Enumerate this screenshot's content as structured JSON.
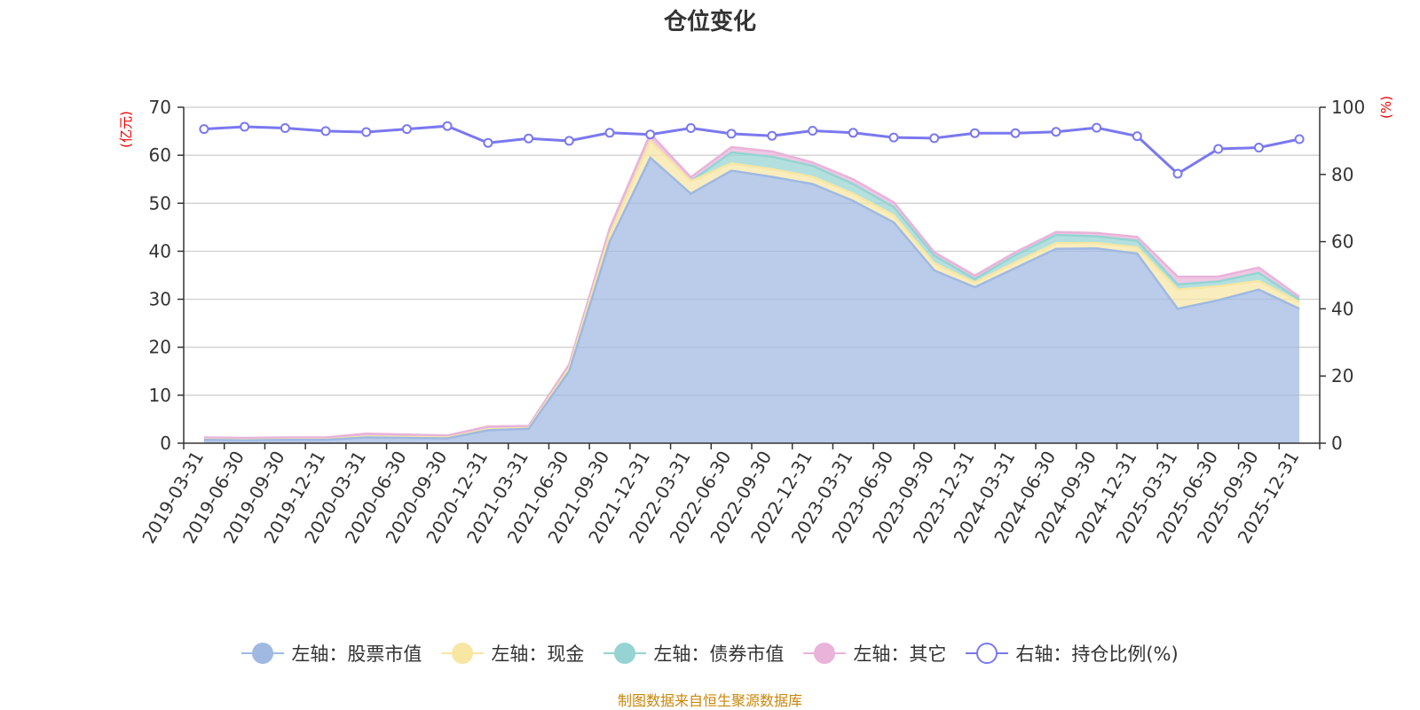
{
  "title": "仓位变化",
  "source": "制图数据来自恒生聚源数据库",
  "colors": {
    "stock": "#9fb9e2",
    "cash": "#f8e6a3",
    "bond": "#95d4d2",
    "other": "#e9b3da",
    "ratio": "#7a78ef",
    "axis_unit": "#ee0000",
    "grid": "#cccccc",
    "axis": "#333333",
    "text": "#333333"
  },
  "chart_data": {
    "type": "area",
    "title": "仓位变化",
    "x": [
      "2019-03-31",
      "2019-06-30",
      "2019-09-30",
      "2019-12-31",
      "2020-03-31",
      "2020-06-30",
      "2020-09-30",
      "2020-12-31",
      "2021-03-31",
      "2021-06-30",
      "2021-09-30",
      "2021-12-31",
      "2022-03-31",
      "2022-06-30",
      "2022-09-30",
      "2022-12-31",
      "2023-03-31",
      "2023-06-30",
      "2023-09-30",
      "2023-12-31",
      "2024-03-31",
      "2024-06-30",
      "2024-09-30",
      "2024-12-31",
      "2025-03-31",
      "2025-06-30",
      "2025-09-30",
      "2025-12-31"
    ],
    "y_left": {
      "label": "(亿元)",
      "min": 0,
      "max": 70,
      "step": 10
    },
    "y_right": {
      "label": "(%)",
      "min": 0,
      "max": 100,
      "step": 20
    },
    "stacked_series": [
      {
        "name": "左轴：股票市值",
        "axis": "left",
        "color_key": "stock",
        "values": [
          0.7,
          0.6,
          0.7,
          0.7,
          1.2,
          1.1,
          1.0,
          2.7,
          3.0,
          15,
          42,
          59.5,
          52,
          56.8,
          55.5,
          54,
          50.5,
          46,
          36,
          32.5,
          36.5,
          40.5,
          40.6,
          39.5,
          28,
          29.8,
          32,
          28
        ]
      },
      {
        "name": "左轴：现金",
        "axis": "left",
        "color_key": "cash",
        "values": [
          0.1,
          0.1,
          0.1,
          0.1,
          0.2,
          0.2,
          0.2,
          0.2,
          0.2,
          0.6,
          1.5,
          3.5,
          2.6,
          1.5,
          1.6,
          1.5,
          1.5,
          1.5,
          1.5,
          1.0,
          1.2,
          1.2,
          1.1,
          1.3,
          4.0,
          2.9,
          1.8,
          1.4
        ]
      },
      {
        "name": "左轴：债券市值",
        "axis": "left",
        "color_key": "bond",
        "values": [
          0,
          0,
          0,
          0,
          0,
          0,
          0,
          0,
          0,
          0,
          0,
          0,
          0,
          2.3,
          2.6,
          2.3,
          2.0,
          1.7,
          1.6,
          0.7,
          1.5,
          1.7,
          1.4,
          1.4,
          1.1,
          1.0,
          1.7,
          0.5
        ]
      },
      {
        "name": "左轴：其它",
        "axis": "left",
        "color_key": "other",
        "values": [
          0.4,
          0.4,
          0.4,
          0.4,
          0.6,
          0.5,
          0.4,
          0.6,
          0.4,
          0.8,
          1.3,
          1.5,
          0.8,
          1.1,
          1.1,
          0.7,
          1.0,
          1.0,
          0.7,
          0.7,
          0.6,
          0.6,
          0.7,
          0.8,
          1.6,
          1.0,
          1.1,
          0.6
        ]
      }
    ],
    "line_series": {
      "name": "右轴：持仓比例(%)",
      "axis": "right",
      "color_key": "ratio",
      "values": [
        93.5,
        94.2,
        93.8,
        92.9,
        92.6,
        93.5,
        94.4,
        89.4,
        90.7,
        90.0,
        92.4,
        91.9,
        93.8,
        92.1,
        91.5,
        93.0,
        92.4,
        91.0,
        90.8,
        92.3,
        92.3,
        92.7,
        93.9,
        91.4,
        80.2,
        87.6,
        88.0,
        90.5
      ]
    },
    "legend": [
      "左轴：股票市值",
      "左轴：现金",
      "左轴：债券市值",
      "左轴：其它",
      "右轴：持仓比例(%)"
    ],
    "grid": true,
    "legend_position": "bottom"
  }
}
